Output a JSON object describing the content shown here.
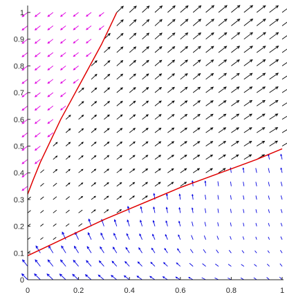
{
  "chart_data": {
    "type": "quiver",
    "title": "",
    "xlabel": "",
    "ylabel": "",
    "xlim": [
      0,
      1
    ],
    "ylim": [
      0,
      1
    ],
    "grid": false,
    "x_ticks": [
      {
        "value": 0,
        "label": "0"
      },
      {
        "value": 0.2,
        "label": "0.2"
      },
      {
        "value": 0.4,
        "label": "0.4"
      },
      {
        "value": 0.6,
        "label": "0.6"
      },
      {
        "value": 0.8,
        "label": "0.8"
      },
      {
        "value": 1,
        "label": "1"
      }
    ],
    "y_ticks": [
      {
        "value": 0,
        "label": "0"
      },
      {
        "value": 0.1,
        "label": "0.1"
      },
      {
        "value": 0.2,
        "label": "0.2"
      },
      {
        "value": 0.3,
        "label": "0.3"
      },
      {
        "value": 0.4,
        "label": "0.4"
      },
      {
        "value": 0.5,
        "label": "0.5"
      },
      {
        "value": 0.6,
        "label": "0.6"
      },
      {
        "value": 0.7,
        "label": "0.7"
      },
      {
        "value": 0.8,
        "label": "0.8"
      },
      {
        "value": 0.9,
        "label": "0.9"
      },
      {
        "value": 1,
        "label": "1"
      }
    ],
    "vector_grid": {
      "x_start": 0,
      "x_end": 1,
      "y_start": 0,
      "y_end": 1,
      "count": 21
    },
    "region_colors": {
      "upper_left": "#e000e0",
      "middle": "#000000",
      "lower_right": "#0000e0"
    },
    "separatrices": [
      {
        "color": "#e00000",
        "points": [
          [
            0.0,
            0.32
          ],
          [
            0.02,
            0.37
          ],
          [
            0.05,
            0.44
          ],
          [
            0.09,
            0.52
          ],
          [
            0.13,
            0.6
          ],
          [
            0.17,
            0.67
          ],
          [
            0.21,
            0.74
          ],
          [
            0.25,
            0.81
          ],
          [
            0.29,
            0.88
          ],
          [
            0.32,
            0.94
          ],
          [
            0.35,
            1.0
          ]
        ]
      },
      {
        "color": "#e00000",
        "points": [
          [
            0.0,
            0.09
          ],
          [
            0.1,
            0.135
          ],
          [
            0.2,
            0.18
          ],
          [
            0.3,
            0.225
          ],
          [
            0.4,
            0.265
          ],
          [
            0.5,
            0.305
          ],
          [
            0.6,
            0.345
          ],
          [
            0.7,
            0.38
          ],
          [
            0.8,
            0.415
          ],
          [
            0.9,
            0.45
          ],
          [
            1.0,
            0.49
          ]
        ]
      }
    ]
  }
}
